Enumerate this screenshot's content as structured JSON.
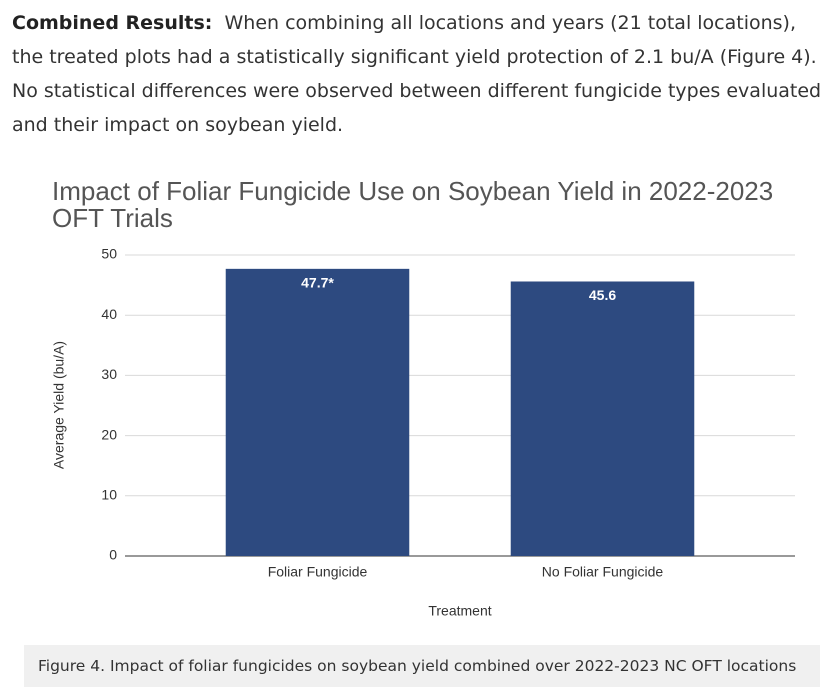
{
  "paragraph": {
    "lead": "Combined Results:",
    "text": "When combining all locations and years (21 total locations), the treated plots had a statistically significant yield protection of 2.1 bu/A (Figure 4). No statistical differences were observed between different fungicide types evaluated and their impact on soybean yield."
  },
  "chart_data": {
    "type": "bar",
    "title": "Impact of Foliar Fungicide Use on Soybean Yield in 2022-2023 OFT Trials",
    "x_label": "Treatment",
    "y_label": "Average Yield (bu/A)",
    "categories": [
      "Foliar Fungicide",
      "No Foliar Fungicide"
    ],
    "values": [
      47.7,
      45.6
    ],
    "value_labels": [
      "47.7*",
      "45.6"
    ],
    "color": "#2d4a80",
    "ylim": [
      0,
      50
    ],
    "yticks": [
      0,
      10,
      20,
      30,
      40,
      50
    ],
    "grid": true
  },
  "caption": "Figure 4. Impact of foliar fungicides on soybean yield combined over 2022-2023 NC OFT locations"
}
